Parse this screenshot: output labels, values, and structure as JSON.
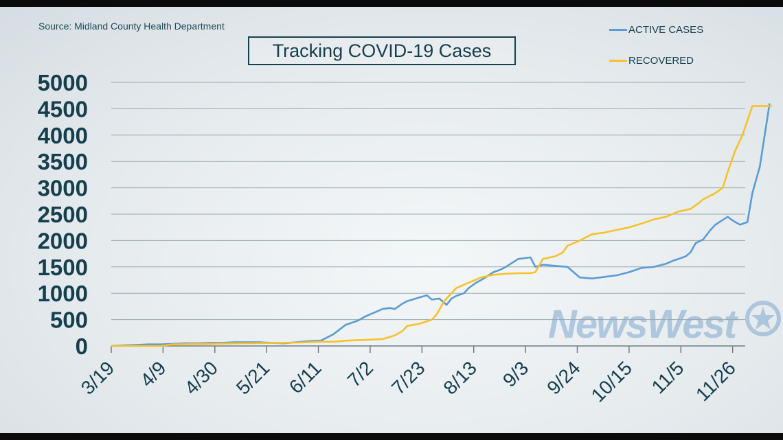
{
  "source_note": "Source: Midland County Health Department",
  "watermark": "NewsWest",
  "colors": {
    "active": "#5b9bd5",
    "recovered": "#f7c12a",
    "text": "#163f4e",
    "grid": "#9aa7ad"
  },
  "chart_data": {
    "type": "line",
    "title": "Tracking COVID-19 Cases",
    "xlabel": "",
    "ylabel": "",
    "ylim": [
      0,
      5000
    ],
    "yticks": [
      0,
      500,
      1000,
      1500,
      2000,
      2500,
      3000,
      3500,
      4000,
      4500,
      5000
    ],
    "xtick_labels": [
      "3/19",
      "4/9",
      "4/30",
      "5/21",
      "6/11",
      "7/2",
      "7/23",
      "8/13",
      "9/3",
      "9/24",
      "10/15",
      "11/5",
      "11/26"
    ],
    "x_days_per_tick": 21,
    "grid": true,
    "legend_position": "top-right",
    "series": [
      {
        "name": "ACTIVE CASES",
        "color": "#5b9bd5",
        "x": [
          0,
          5,
          10,
          15,
          20,
          25,
          30,
          35,
          40,
          45,
          50,
          55,
          60,
          65,
          70,
          75,
          80,
          85,
          90,
          95,
          100,
          103,
          105,
          110,
          113,
          115,
          118,
          120,
          125,
          128,
          130,
          133,
          136,
          138,
          140,
          143,
          145,
          148,
          150,
          155,
          158,
          160,
          162,
          165,
          170,
          172,
          175,
          180,
          185,
          190,
          195,
          200,
          205,
          210,
          215,
          220,
          225,
          228,
          230,
          233,
          235,
          237,
          240,
          243,
          245,
          250,
          252,
          255,
          258,
          260,
          263,
          267
        ],
        "y": [
          0,
          10,
          20,
          30,
          30,
          40,
          50,
          50,
          60,
          60,
          70,
          70,
          70,
          60,
          50,
          70,
          90,
          100,
          220,
          400,
          480,
          560,
          600,
          700,
          720,
          700,
          800,
          850,
          920,
          960,
          880,
          900,
          780,
          900,
          950,
          1000,
          1100,
          1200,
          1250,
          1400,
          1450,
          1500,
          1560,
          1650,
          1680,
          1500,
          1540,
          1520,
          1500,
          1300,
          1280,
          1310,
          1340,
          1400,
          1480,
          1500,
          1560,
          1620,
          1650,
          1700,
          1780,
          1950,
          2020,
          2200,
          2300,
          2450,
          2380,
          2300,
          2350,
          2900,
          3400,
          4600
        ]
      },
      {
        "name": "RECOVERED",
        "color": "#f7c12a",
        "x": [
          0,
          20,
          25,
          40,
          50,
          60,
          70,
          80,
          85,
          90,
          95,
          100,
          105,
          110,
          115,
          118,
          120,
          125,
          130,
          132,
          135,
          140,
          145,
          150,
          155,
          160,
          165,
          170,
          172,
          175,
          180,
          183,
          185,
          190,
          195,
          200,
          205,
          210,
          215,
          220,
          225,
          230,
          235,
          238,
          240,
          243,
          245,
          248,
          250,
          253,
          256,
          260,
          265,
          268
        ],
        "y": [
          0,
          0,
          30,
          40,
          50,
          55,
          60,
          70,
          80,
          80,
          100,
          110,
          120,
          130,
          200,
          280,
          380,
          420,
          500,
          600,
          850,
          1100,
          1200,
          1300,
          1350,
          1370,
          1380,
          1380,
          1400,
          1650,
          1700,
          1770,
          1900,
          2000,
          2120,
          2150,
          2200,
          2250,
          2320,
          2400,
          2450,
          2550,
          2600,
          2700,
          2780,
          2850,
          2900,
          3000,
          3300,
          3700,
          4000,
          4550,
          4550,
          4550
        ]
      }
    ]
  }
}
